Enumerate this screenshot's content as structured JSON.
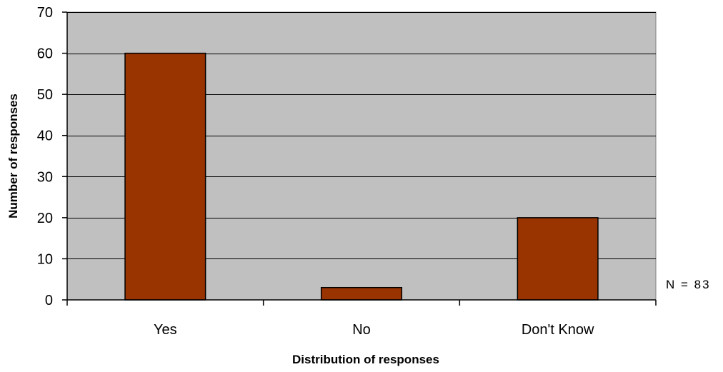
{
  "chart_data": {
    "type": "bar",
    "categories": [
      "Yes",
      "No",
      "Don't Know"
    ],
    "values": [
      60,
      3,
      20
    ],
    "xlabel": "Distribution of responses",
    "ylabel": "Number of responses",
    "ylim": [
      0,
      70
    ],
    "yticks": [
      0,
      10,
      20,
      30,
      40,
      50,
      60,
      70
    ],
    "grid": true,
    "legend": "none",
    "annotation": "N = 83",
    "colors": {
      "bar": "#993300",
      "plot_background": "#c0c0c0",
      "gridline": "#000000"
    }
  }
}
